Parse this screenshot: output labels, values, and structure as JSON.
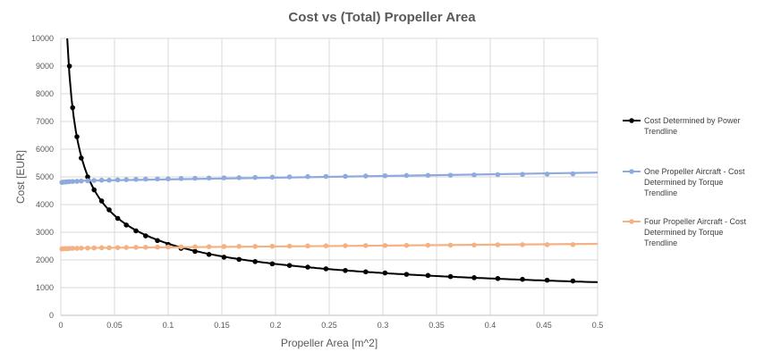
{
  "chart_data": {
    "type": "scatter",
    "title": "Cost vs (Total) Propeller Area",
    "xlabel": "Propeller Area [m^2]",
    "ylabel": "Cost [EUR]",
    "xlim": [
      0,
      0.5
    ],
    "ylim": [
      0,
      10000
    ],
    "x_ticks": [
      "0",
      "0.05",
      "0.1",
      "0.15",
      "0.2",
      "0.25",
      "0.3",
      "0.35",
      "0.4",
      "0.45",
      "0.5"
    ],
    "y_ticks": [
      "0",
      "1000",
      "2000",
      "3000",
      "4000",
      "5000",
      "6000",
      "7000",
      "8000",
      "9000",
      "10000"
    ],
    "grid": true,
    "legend_position": "right",
    "series": [
      {
        "name": "Cost Determined by Power",
        "legend_label": [
          "Cost Determined by Power",
          "Trendline"
        ],
        "color": "#000000",
        "trendline": "power",
        "x": [
          0.008,
          0.011,
          0.015,
          0.019,
          0.025,
          0.031,
          0.038,
          0.045,
          0.053,
          0.061,
          0.07,
          0.079,
          0.09,
          0.1,
          0.112,
          0.125,
          0.138,
          0.152,
          0.166,
          0.181,
          0.197,
          0.213,
          0.23,
          0.247,
          0.265,
          0.284,
          0.302,
          0.322,
          0.342,
          0.363,
          0.385,
          0.407,
          0.43,
          0.453,
          0.477
        ],
        "y": [
          9000,
          7500,
          6450,
          5680,
          5000,
          4530,
          4130,
          3810,
          3500,
          3260,
          3050,
          2870,
          2700,
          2560,
          2420,
          2310,
          2200,
          2100,
          2020,
          1940,
          1860,
          1800,
          1740,
          1680,
          1620,
          1570,
          1530,
          1480,
          1440,
          1400,
          1360,
          1330,
          1300,
          1270,
          1240
        ]
      },
      {
        "name": "One Propeller Aircraft - Cost Determined by Torque",
        "legend_label": [
          "One Propeller Aircraft - Cost",
          "Determined by Torque",
          "Trendline"
        ],
        "color": "#8faadc",
        "trendline": "linear",
        "x": [
          0.001,
          0.002,
          0.004,
          0.006,
          0.008,
          0.011,
          0.015,
          0.019,
          0.025,
          0.031,
          0.038,
          0.045,
          0.053,
          0.061,
          0.07,
          0.079,
          0.09,
          0.1,
          0.112,
          0.125,
          0.138,
          0.152,
          0.166,
          0.181,
          0.197,
          0.213,
          0.23,
          0.247,
          0.265,
          0.284,
          0.302,
          0.322,
          0.342,
          0.363,
          0.385,
          0.407,
          0.43,
          0.453,
          0.477
        ],
        "y": [
          4800,
          4810,
          4815,
          4820,
          4830,
          4835,
          4840,
          4850,
          4860,
          4870,
          4880,
          4880,
          4890,
          4900,
          4910,
          4920,
          4925,
          4930,
          4940,
          4950,
          4960,
          4965,
          4970,
          4980,
          4990,
          5000,
          5010,
          5015,
          5020,
          5030,
          5040,
          5050,
          5055,
          5060,
          5070,
          5080,
          5090,
          5100,
          5110
        ]
      },
      {
        "name": "Four Propeller Aircraft - Cost Determined by Torque",
        "legend_label": [
          "Four Propeller Aircraft - Cost",
          "Determined by Torque",
          "Trendline"
        ],
        "color": "#f4b183",
        "trendline": "linear",
        "x": [
          0.001,
          0.002,
          0.004,
          0.006,
          0.008,
          0.011,
          0.015,
          0.019,
          0.025,
          0.031,
          0.038,
          0.045,
          0.053,
          0.061,
          0.07,
          0.079,
          0.09,
          0.1,
          0.112,
          0.125,
          0.138,
          0.152,
          0.166,
          0.181,
          0.197,
          0.213,
          0.23,
          0.247,
          0.265,
          0.284,
          0.302,
          0.322,
          0.342,
          0.363,
          0.385,
          0.407,
          0.43,
          0.453,
          0.477
        ],
        "y": [
          2400,
          2405,
          2410,
          2410,
          2415,
          2420,
          2420,
          2425,
          2430,
          2435,
          2440,
          2440,
          2445,
          2450,
          2455,
          2460,
          2465,
          2470,
          2470,
          2475,
          2480,
          2485,
          2490,
          2490,
          2495,
          2500,
          2505,
          2510,
          2515,
          2520,
          2520,
          2525,
          2530,
          2535,
          2540,
          2545,
          2550,
          2550,
          2555
        ]
      }
    ]
  }
}
